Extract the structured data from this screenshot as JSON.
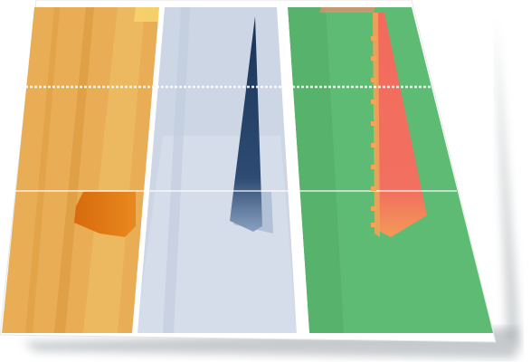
{
  "figure": {
    "panels": [
      {
        "name": "orange",
        "colors": {
          "base": "#e9ad55",
          "light": "#f1c26a",
          "stripe": "#dc9a3e",
          "accent": "#e07a12",
          "accent_shadow": "#c96a0d"
        }
      },
      {
        "name": "blue-gray",
        "colors": {
          "base": "#cdd6e4",
          "light": "#dde3ee",
          "stripe": "#bcc8da",
          "accent": "#1e3a5f",
          "accent_mid": "#35557e"
        }
      },
      {
        "name": "green",
        "colors": {
          "base": "#5dbb74",
          "light": "#6cc482",
          "stripe": "#53ad68",
          "accent": "#f26b5e",
          "accent_edge": "#f3a457"
        }
      }
    ],
    "gridline_color": "#ffffff",
    "drop_shadow_color": "#9aa0a6"
  }
}
